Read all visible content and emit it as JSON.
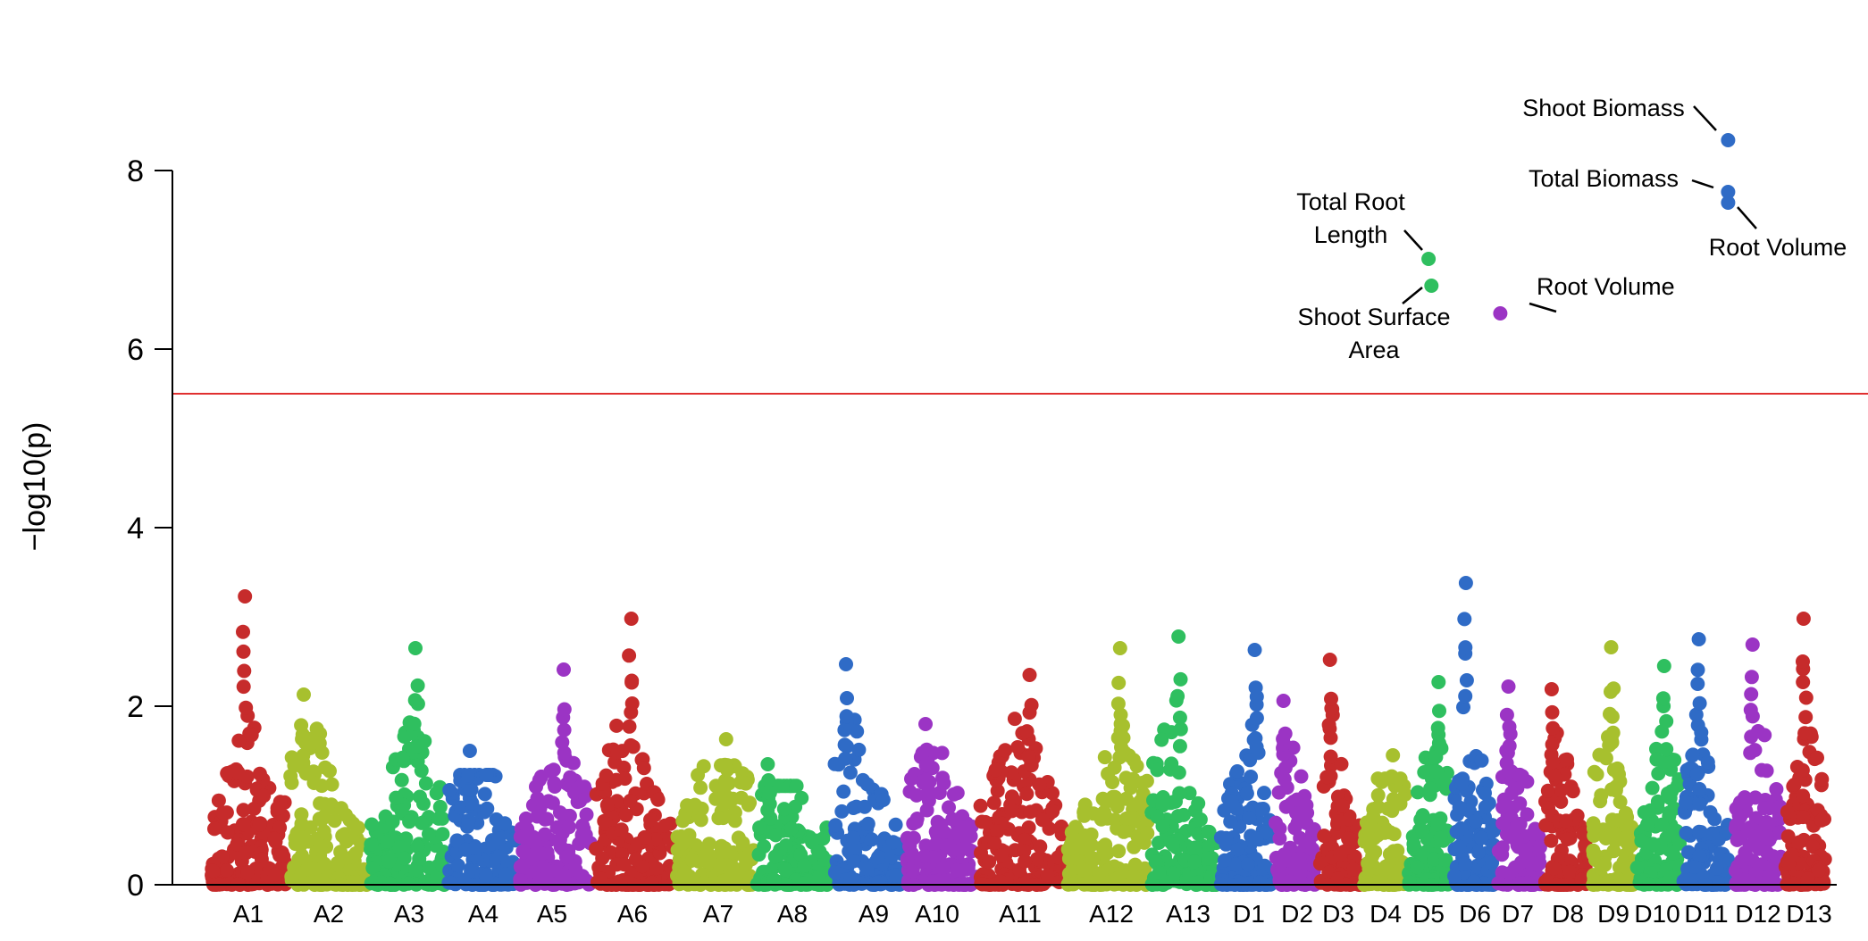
{
  "chart_data": {
    "type": "scatter",
    "title": "",
    "xlabel": "",
    "ylabel": "−log10(p)",
    "ylim": [
      0,
      8
    ],
    "yticks": [
      0,
      2,
      4,
      6,
      8
    ],
    "grid": false,
    "threshold": {
      "value": 5.5,
      "color": "#e03030"
    },
    "palette": [
      "#c62b2b",
      "#a7c02e",
      "#2fbf5f",
      "#2f6bc6",
      "#9b34c4"
    ],
    "chromosomes": [
      {
        "name": "A1",
        "color": "#c62b2b",
        "peak": 3.23
      },
      {
        "name": "A2",
        "color": "#a7c02e",
        "peak": 2.13
      },
      {
        "name": "A3",
        "color": "#2fbf5f",
        "peak": 2.65
      },
      {
        "name": "A4",
        "color": "#2f6bc6",
        "peak": 1.5
      },
      {
        "name": "A5",
        "color": "#9b34c4",
        "peak": 2.41
      },
      {
        "name": "A6",
        "color": "#c62b2b",
        "peak": 2.98
      },
      {
        "name": "A7",
        "color": "#a7c02e",
        "peak": 1.63
      },
      {
        "name": "A8",
        "color": "#2fbf5f",
        "peak": 1.35
      },
      {
        "name": "A9",
        "color": "#2f6bc6",
        "peak": 2.47
      },
      {
        "name": "A10",
        "color": "#9b34c4",
        "peak": 1.8
      },
      {
        "name": "A11",
        "color": "#c62b2b",
        "peak": 2.35
      },
      {
        "name": "A12",
        "color": "#a7c02e",
        "peak": 2.65
      },
      {
        "name": "A13",
        "color": "#2fbf5f",
        "peak": 2.78
      },
      {
        "name": "D1",
        "color": "#2f6bc6",
        "peak": 2.63
      },
      {
        "name": "D2",
        "color": "#9b34c4",
        "peak": 2.06
      },
      {
        "name": "D3",
        "color": "#c62b2b",
        "peak": 2.52
      },
      {
        "name": "D4",
        "color": "#a7c02e",
        "peak": 1.45
      },
      {
        "name": "D5",
        "color": "#2fbf5f",
        "peak": 2.27
      },
      {
        "name": "D6",
        "color": "#2f6bc6",
        "peak": 3.38
      },
      {
        "name": "D7",
        "color": "#9b34c4",
        "peak": 2.22
      },
      {
        "name": "D8",
        "color": "#c62b2b",
        "peak": 2.19
      },
      {
        "name": "D9",
        "color": "#a7c02e",
        "peak": 2.66
      },
      {
        "name": "D10",
        "color": "#2fbf5f",
        "peak": 2.45
      },
      {
        "name": "D11",
        "color": "#2f6bc6",
        "peak": 2.75
      },
      {
        "name": "D12",
        "color": "#9b34c4",
        "peak": 2.69
      },
      {
        "name": "D13",
        "color": "#c62b2b",
        "peak": 2.98
      }
    ],
    "significant_points": [
      {
        "chr": "D5",
        "pos": 0.48,
        "y": 7.01,
        "color": "#2fbf5f",
        "label": [
          "Total Root",
          "Length"
        ]
      },
      {
        "chr": "D5",
        "pos": 0.55,
        "y": 6.71,
        "color": "#2fbf5f",
        "label": [
          "Shoot Surface",
          "Area"
        ]
      },
      {
        "chr": "D7",
        "pos": 0.05,
        "y": 6.4,
        "color": "#9b34c4",
        "label": [
          "Root Volume"
        ]
      },
      {
        "chr": "D11",
        "pos": 0.95,
        "y": 8.34,
        "color": "#2f6bc6",
        "label": [
          "Shoot Biomass"
        ]
      },
      {
        "chr": "D11",
        "pos": 0.95,
        "y": 7.76,
        "color": "#2f6bc6",
        "label": [
          "Total Biomass"
        ]
      },
      {
        "chr": "D11",
        "pos": 0.95,
        "y": 7.64,
        "color": "#2f6bc6",
        "label": [
          "Root Volume"
        ]
      }
    ]
  }
}
